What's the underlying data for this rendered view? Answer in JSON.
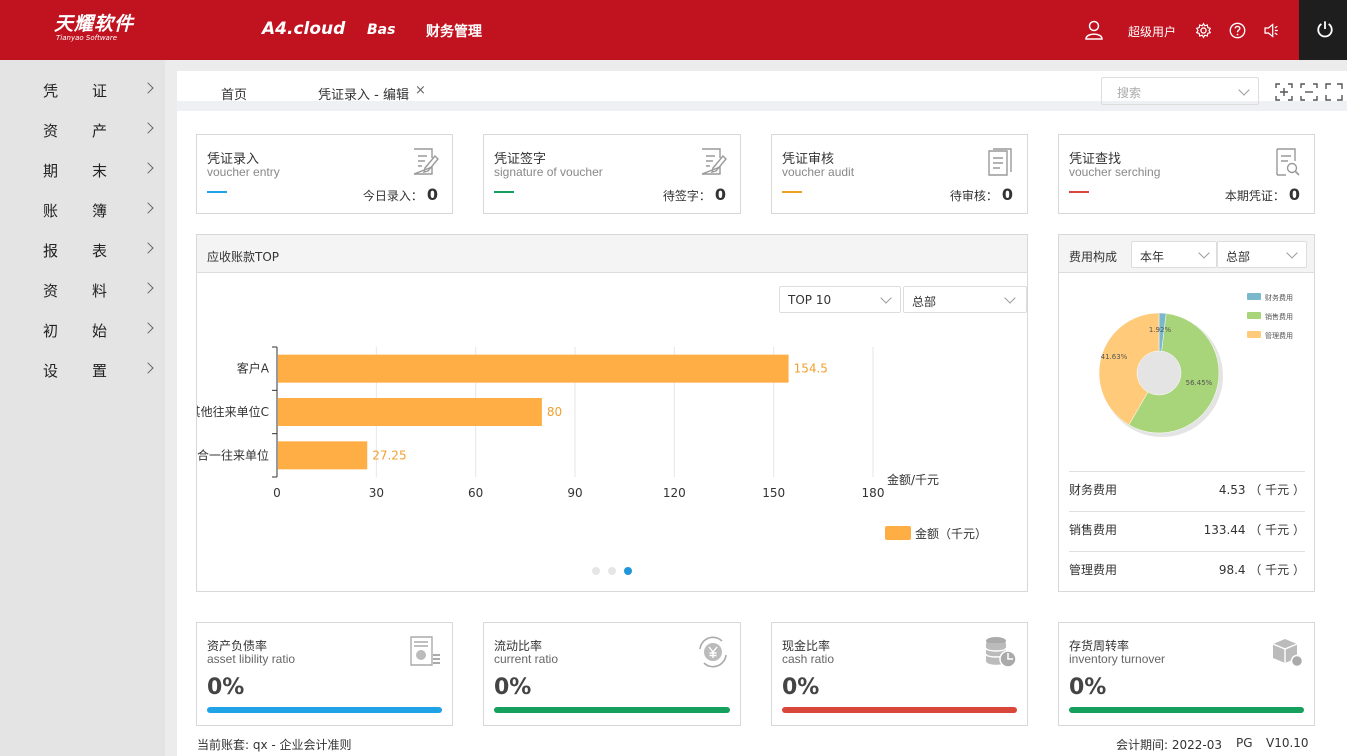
{
  "header": {
    "logo_cn": "天耀软件",
    "logo_en": "Tianyao Software",
    "nav": [
      "A4.cloud",
      "Bas",
      "财务管理"
    ],
    "user": "超级用户"
  },
  "sidebar": {
    "items": [
      {
        "c1": "凭",
        "c2": "证"
      },
      {
        "c1": "资",
        "c2": "产"
      },
      {
        "c1": "期",
        "c2": "末"
      },
      {
        "c1": "账",
        "c2": "簿"
      },
      {
        "c1": "报",
        "c2": "表"
      },
      {
        "c1": "资",
        "c2": "料"
      },
      {
        "c1": "初",
        "c2": "始"
      },
      {
        "c1": "设",
        "c2": "置"
      }
    ]
  },
  "tabs": {
    "home": "首页",
    "voucher": "凭证录入 - 编辑",
    "close": "×",
    "search_placeholder": "搜索"
  },
  "cards": [
    {
      "title": "凭证录入",
      "sub": "voucher entry",
      "label": "今日录入：",
      "value": "0",
      "color": "#1fa2e6"
    },
    {
      "title": "凭证签字",
      "sub": "signature of voucher",
      "label": "待签字：",
      "value": "0",
      "color": "#16a05d"
    },
    {
      "title": "凭证审核",
      "sub": "voucher audit",
      "label": "待审核：",
      "value": "0",
      "color": "#f0a020"
    },
    {
      "title": "凭证查找",
      "sub": "voucher serching",
      "label": "本期凭证：",
      "value": "0",
      "color": "#d9473a"
    }
  ],
  "receivable": {
    "title": "应收账款TOP",
    "top_select": "TOP 10",
    "dept_select": "总部",
    "unit_label": "金额/千元",
    "legend": "金额（千元）",
    "pager_active": 2
  },
  "chart_data": {
    "type": "bar",
    "orientation": "horizontal",
    "categories": [
      "客户A",
      "其他往来单位C",
      "合一往来单位"
    ],
    "values": [
      154.5,
      80,
      27.25
    ],
    "value_labels": [
      "154.5",
      "80",
      "27.25"
    ],
    "xticks": [
      "0",
      "30",
      "60",
      "90",
      "120",
      "150",
      "180"
    ],
    "xlim": [
      0,
      180
    ],
    "xlabel": "金额/千元",
    "series": [
      {
        "name": "金额（千元）",
        "values": [
          154.5,
          80,
          27.25
        ]
      }
    ],
    "bar_color": "#ffad45",
    "grid": true,
    "legend_position": "bottom-right"
  },
  "expense": {
    "title": "费用构成",
    "year_select": "本年",
    "dept_select": "总部",
    "legend": [
      "财务费用",
      "销售费用",
      "管理费用"
    ],
    "colors": [
      "#7ab8cc",
      "#a8d47a",
      "#ffcb7a"
    ],
    "pie_values": [
      4.53,
      133.44,
      98.4
    ],
    "pct_labels": [
      "1.92%",
      "56.45%",
      "41.63%"
    ],
    "rows": [
      {
        "name": "财务费用",
        "value": "4.53 （ 千元 ）"
      },
      {
        "name": "销售费用",
        "value": "133.44 （ 千元 ）"
      },
      {
        "name": "管理费用",
        "value": "98.4 （ 千元 ）"
      }
    ]
  },
  "ratios": [
    {
      "title": "资产负债率",
      "sub": "asset libility ratio",
      "value": "0%",
      "color": "#1fa2e6",
      "icon": "document-chart-icon"
    },
    {
      "title": "流动比率",
      "sub": "current ratio",
      "value": "0%",
      "color": "#16a05d",
      "icon": "yen-cycle-icon"
    },
    {
      "title": "现金比率",
      "sub": "cash ratio",
      "value": "0%",
      "color": "#d9473a",
      "icon": "coins-icon"
    },
    {
      "title": "存货周转率",
      "sub": "inventory turnover",
      "value": "0%",
      "color": "#16a05d",
      "icon": "inventory-box-icon"
    }
  ],
  "footer": {
    "account": "当前账套: qx - 企业会计准则",
    "period": "会计期间: 2022-03",
    "pg": "PG",
    "version": "V10.10"
  }
}
